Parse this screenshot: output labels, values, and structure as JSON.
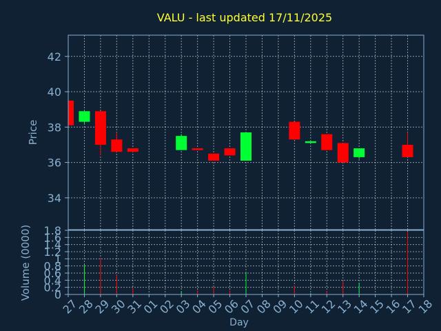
{
  "chart_data": {
    "title": "VALU - last updated 17/11/2025",
    "colors": {
      "background": "#0f2133",
      "title": "#ffff33",
      "axis_text": "#8ab0d0",
      "grid": "#ffffff",
      "up": "#00ff33",
      "down": "#ff0000"
    },
    "days": [
      "27",
      "28",
      "29",
      "30",
      "31",
      "01",
      "02",
      "03",
      "04",
      "05",
      "06",
      "07",
      "08",
      "09",
      "10",
      "11",
      "12",
      "13",
      "14",
      "15",
      "16",
      "17",
      "18"
    ],
    "price_panel": {
      "type": "candlestick",
      "ylabel": "Price",
      "ylim": [
        32.2,
        43.2
      ],
      "yticks": [
        34,
        36,
        38,
        40,
        42
      ],
      "candles": [
        {
          "day": "27",
          "open": 39.5,
          "close": 38.1,
          "high": 39.5,
          "low": 38.1
        },
        {
          "day": "28",
          "open": 38.3,
          "close": 38.9,
          "high": 38.9,
          "low": 38.2
        },
        {
          "day": "29",
          "open": 38.9,
          "close": 37.0,
          "high": 38.9,
          "low": 36.4
        },
        {
          "day": "30",
          "open": 37.3,
          "close": 36.6,
          "high": 37.7,
          "low": 36.6
        },
        {
          "day": "31",
          "open": 36.8,
          "close": 36.6,
          "high": 36.8,
          "low": 36.6
        },
        {
          "day": "03",
          "open": 36.7,
          "close": 37.5,
          "high": 37.6,
          "low": 36.7
        },
        {
          "day": "04",
          "open": 36.8,
          "close": 36.7,
          "high": 36.8,
          "low": 36.7
        },
        {
          "day": "05",
          "open": 36.5,
          "close": 36.1,
          "high": 36.5,
          "low": 36.1
        },
        {
          "day": "06",
          "open": 36.8,
          "close": 36.4,
          "high": 36.8,
          "low": 36.4
        },
        {
          "day": "07",
          "open": 36.1,
          "close": 37.7,
          "high": 37.7,
          "low": 36.1
        },
        {
          "day": "10",
          "open": 38.3,
          "close": 37.3,
          "high": 38.3,
          "low": 37.3
        },
        {
          "day": "11",
          "open": 37.1,
          "close": 37.2,
          "high": 37.2,
          "low": 37.1
        },
        {
          "day": "12",
          "open": 37.6,
          "close": 36.7,
          "high": 37.6,
          "low": 36.7
        },
        {
          "day": "13",
          "open": 37.1,
          "close": 36.0,
          "high": 37.1,
          "low": 36.0
        },
        {
          "day": "14",
          "open": 36.3,
          "close": 36.8,
          "high": 36.8,
          "low": 36.2
        },
        {
          "day": "17",
          "open": 37.0,
          "close": 36.3,
          "high": 37.7,
          "low": 36.3
        }
      ]
    },
    "volume_panel": {
      "type": "bar",
      "ylabel": "Volume (0000)",
      "ylim": [
        0,
        1.8
      ],
      "yticks": [
        "0",
        "0.2",
        "0.4",
        "0.6",
        "0.8",
        "1",
        "1.2",
        "1.4",
        "1.6",
        "1.8"
      ],
      "bars": [
        {
          "day": "28",
          "value": 0.83,
          "direction": "up"
        },
        {
          "day": "29",
          "value": 1.02,
          "direction": "down"
        },
        {
          "day": "30",
          "value": 0.55,
          "direction": "down"
        },
        {
          "day": "31",
          "value": 0.18,
          "direction": "down"
        },
        {
          "day": "03",
          "value": 0.08,
          "direction": "up"
        },
        {
          "day": "04",
          "value": 0.12,
          "direction": "down"
        },
        {
          "day": "05",
          "value": 0.22,
          "direction": "down"
        },
        {
          "day": "06",
          "value": 0.12,
          "direction": "down"
        },
        {
          "day": "07",
          "value": 0.62,
          "direction": "up"
        },
        {
          "day": "10",
          "value": 0.25,
          "direction": "down"
        },
        {
          "day": "11",
          "value": 0.04,
          "direction": "up"
        },
        {
          "day": "12",
          "value": 0.1,
          "direction": "down"
        },
        {
          "day": "13",
          "value": 0.38,
          "direction": "down"
        },
        {
          "day": "14",
          "value": 0.33,
          "direction": "up"
        },
        {
          "day": "17",
          "value": 1.76,
          "direction": "down"
        }
      ]
    },
    "xlabel": "Day",
    "grid": true
  }
}
